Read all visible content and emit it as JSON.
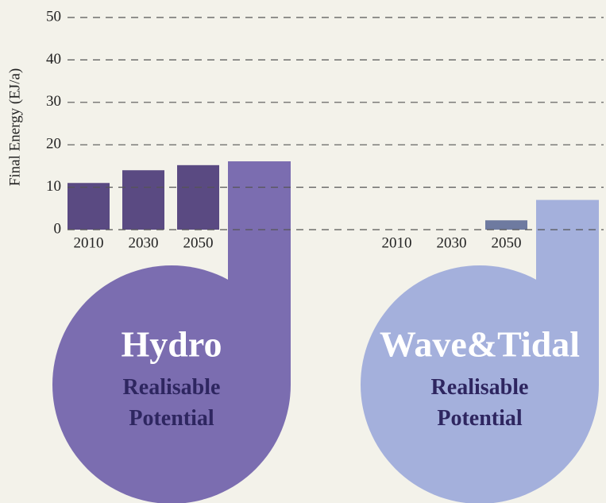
{
  "chart_data": {
    "type": "bar",
    "y_label": "Final Energy (EJ/a)",
    "ylim": [
      0,
      50
    ],
    "yticks": [
      0,
      10,
      20,
      30,
      40,
      50
    ],
    "grid": true,
    "groups": [
      {
        "name": "Hydro",
        "potential_label": "Realisable Potential",
        "categories": [
          "2010",
          "2030",
          "2050"
        ],
        "values": [
          11,
          14,
          15.2
        ],
        "potential": 16.1,
        "color": "#5a4a82",
        "potential_color": "#7b6db0"
      },
      {
        "name": "Wave&Tidal",
        "potential_label": "Realisable Potential",
        "categories": [
          "2010",
          "2030",
          "2050"
        ],
        "values": [
          0,
          0,
          2.2
        ],
        "potential": 7,
        "color": "#6e7aa0",
        "potential_color": "#a4b0dc"
      }
    ]
  }
}
